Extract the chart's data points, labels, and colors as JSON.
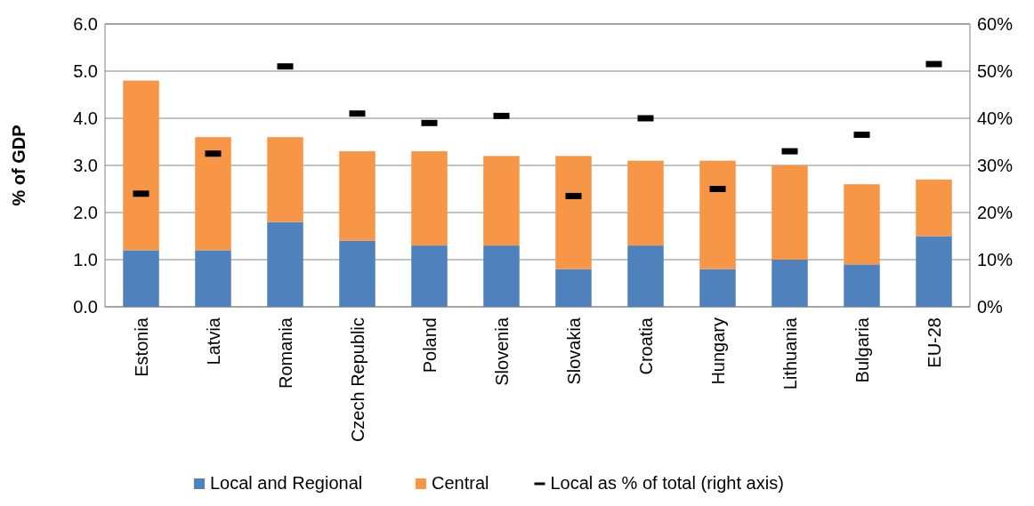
{
  "chart_data": {
    "type": "bar",
    "stacked": true,
    "ylabel": "% of GDP",
    "categories": [
      "Estonia",
      "Latvia",
      "Romania",
      "Czech Republic",
      "Poland",
      "Slovenia",
      "Slovakia",
      "Croatia",
      "Hungary",
      "Lithuania",
      "Bulgaria",
      "EU-28"
    ],
    "series": [
      {
        "name": "Local and Regional",
        "color": "#4f81bd",
        "values": [
          1.2,
          1.2,
          1.8,
          1.4,
          1.3,
          1.3,
          0.8,
          1.3,
          0.8,
          1.0,
          0.9,
          1.5
        ]
      },
      {
        "name": "Central",
        "color": "#f79646",
        "values": [
          3.6,
          2.4,
          1.8,
          1.9,
          2.0,
          1.9,
          2.4,
          1.8,
          2.3,
          2.0,
          1.7,
          1.2
        ]
      },
      {
        "name": "Local as % of total (right axis)",
        "type": "scatter",
        "axis": "y2",
        "color": "#000000",
        "values": [
          24,
          32.5,
          51,
          41,
          39,
          40.5,
          23.5,
          40,
          25,
          33,
          36.5,
          51.5
        ]
      }
    ],
    "ylim": [
      0,
      6
    ],
    "yticks": [
      {
        "value": 0,
        "label": "0.0"
      },
      {
        "value": 1,
        "label": "1.0"
      },
      {
        "value": 2,
        "label": "2.0"
      },
      {
        "value": 3,
        "label": "3.0"
      },
      {
        "value": 4,
        "label": "4.0"
      },
      {
        "value": 5,
        "label": "5.0"
      },
      {
        "value": 6,
        "label": "6.0"
      }
    ],
    "y2lim": [
      0,
      60
    ],
    "y2ticks": [
      {
        "value": 0,
        "label": "0%"
      },
      {
        "value": 10,
        "label": "10%"
      },
      {
        "value": 20,
        "label": "20%"
      },
      {
        "value": 30,
        "label": "30%"
      },
      {
        "value": 40,
        "label": "40%"
      },
      {
        "value": 50,
        "label": "50%"
      },
      {
        "value": 60,
        "label": "60%"
      }
    ],
    "grid": "y",
    "legend": "bottom"
  }
}
